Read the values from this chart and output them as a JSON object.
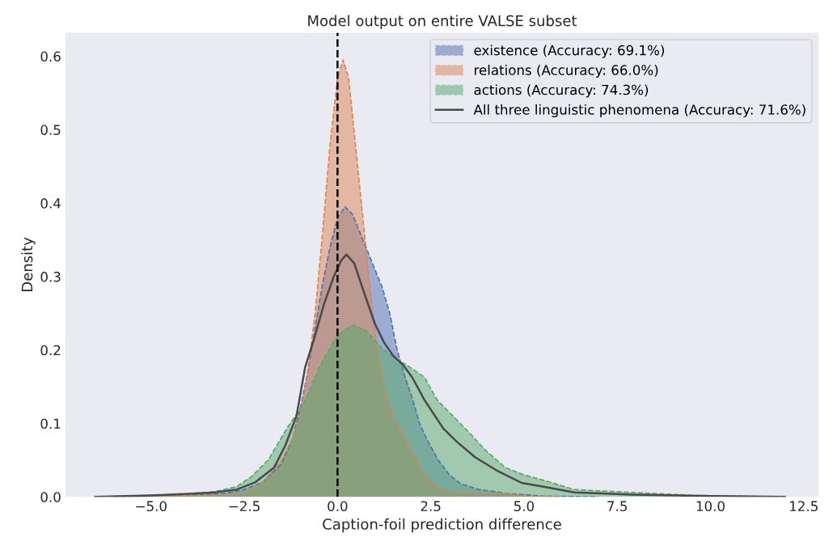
{
  "chart_data": {
    "type": "area",
    "title": "Model output on entire VALSE subset",
    "xlabel": "Caption-foil prediction difference",
    "ylabel": "Density",
    "xlim": [
      -7.3,
      12.9
    ],
    "ylim": [
      0,
      0.632
    ],
    "xticks": [
      {
        "value": -5,
        "label": "−5.0"
      },
      {
        "value": -2.5,
        "label": "−2.5"
      },
      {
        "value": 0,
        "label": "0.0"
      },
      {
        "value": 2.5,
        "label": "2.5"
      },
      {
        "value": 5,
        "label": "5.0"
      },
      {
        "value": 7.5,
        "label": "7.5"
      },
      {
        "value": 10,
        "label": "10.0"
      },
      {
        "value": 12.5,
        "label": "12.5"
      }
    ],
    "yticks": [
      {
        "value": 0,
        "label": "0.0"
      },
      0.1,
      0.2,
      0.3,
      0.4,
      0.5,
      0.6
    ],
    "grid": false,
    "legend": "top right",
    "ref_lines": [
      {
        "axis": "x",
        "value": 0,
        "color": "#000000",
        "line_style": "dashed"
      }
    ],
    "series": [
      {
        "name": "existence (Accuracy: 69.1%)",
        "color": "#4c72b0",
        "line_style": "dashed",
        "x": [
          -6,
          -4,
          -3,
          -2.5,
          -2,
          -1.5,
          -1.2,
          -1.0,
          -0.8,
          -0.6,
          -0.4,
          -0.2,
          0,
          0.2,
          0.4,
          0.6,
          0.8,
          1.0,
          1.2,
          1.4,
          1.6,
          1.8,
          2.0,
          2.2,
          2.4,
          2.7,
          3.0,
          3.3,
          3.8,
          4.5,
          5.5,
          7
        ],
        "values": [
          0,
          0.002,
          0.005,
          0.01,
          0.02,
          0.045,
          0.08,
          0.12,
          0.17,
          0.23,
          0.29,
          0.34,
          0.38,
          0.395,
          0.385,
          0.36,
          0.335,
          0.31,
          0.285,
          0.25,
          0.2,
          0.165,
          0.135,
          0.1,
          0.078,
          0.05,
          0.03,
          0.018,
          0.01,
          0.005,
          0.001,
          0
        ]
      },
      {
        "name": "relations (Accuracy: 66.0%)",
        "color": "#dd8452",
        "line_style": "dashed",
        "x": [
          -6,
          -3,
          -2.5,
          -2,
          -1.5,
          -1.2,
          -1.0,
          -0.8,
          -0.6,
          -0.4,
          -0.2,
          0,
          0.15,
          0.3,
          0.5,
          0.7,
          0.9,
          1.1,
          1.3,
          1.5,
          1.8,
          2.0,
          2.3,
          2.6,
          3.0,
          3.5,
          4.0,
          4.5,
          5.0,
          6
        ],
        "values": [
          0,
          0.002,
          0.005,
          0.02,
          0.05,
          0.08,
          0.11,
          0.17,
          0.25,
          0.36,
          0.48,
          0.57,
          0.595,
          0.57,
          0.47,
          0.37,
          0.27,
          0.19,
          0.14,
          0.11,
          0.08,
          0.06,
          0.035,
          0.015,
          0.007,
          0.006,
          0.004,
          0.005,
          0.001,
          0
        ]
      },
      {
        "name": "actions (Accuracy: 74.3%)",
        "color": "#55a868",
        "line_style": "dashed",
        "x": [
          -6.5,
          -5,
          -4,
          -3.3,
          -2.7,
          -2.3,
          -1.86,
          -1.36,
          -0.87,
          -0.5,
          -0.1,
          0.2,
          0.45,
          0.8,
          1.17,
          1.5,
          1.84,
          2.33,
          2.67,
          3.1,
          3.5,
          4.0,
          4.5,
          5.0,
          5.5,
          6.35,
          7.9,
          9.6,
          12
        ],
        "values": [
          0,
          0.002,
          0.004,
          0.007,
          0.014,
          0.028,
          0.05,
          0.093,
          0.13,
          0.175,
          0.212,
          0.228,
          0.234,
          0.225,
          0.203,
          0.19,
          0.18,
          0.163,
          0.132,
          0.11,
          0.089,
          0.062,
          0.04,
          0.03,
          0.023,
          0.01,
          0.006,
          0.002,
          0
        ]
      },
      {
        "name": "All three linguistic phenomena (Accuracy: 71.6%)",
        "type": "line",
        "color": "#4a4a4a",
        "line_style": "solid",
        "x": [
          -6.5,
          -5,
          -4,
          -3.3,
          -2.7,
          -2.2,
          -1.7,
          -1.4,
          -1.1,
          -0.87,
          -0.6,
          -0.36,
          -0.1,
          0.1,
          0.24,
          0.45,
          0.7,
          1.0,
          1.25,
          1.48,
          1.75,
          2.0,
          2.33,
          2.84,
          3.2,
          3.69,
          4.3,
          4.94,
          5.5,
          6.35,
          7.9,
          10,
          12
        ],
        "values": [
          0,
          0.002,
          0.004,
          0.006,
          0.01,
          0.02,
          0.04,
          0.07,
          0.11,
          0.176,
          0.22,
          0.263,
          0.3,
          0.322,
          0.33,
          0.318,
          0.28,
          0.236,
          0.21,
          0.193,
          0.18,
          0.163,
          0.132,
          0.093,
          0.075,
          0.054,
          0.035,
          0.019,
          0.014,
          0.006,
          0.003,
          0.001,
          0
        ]
      }
    ]
  }
}
